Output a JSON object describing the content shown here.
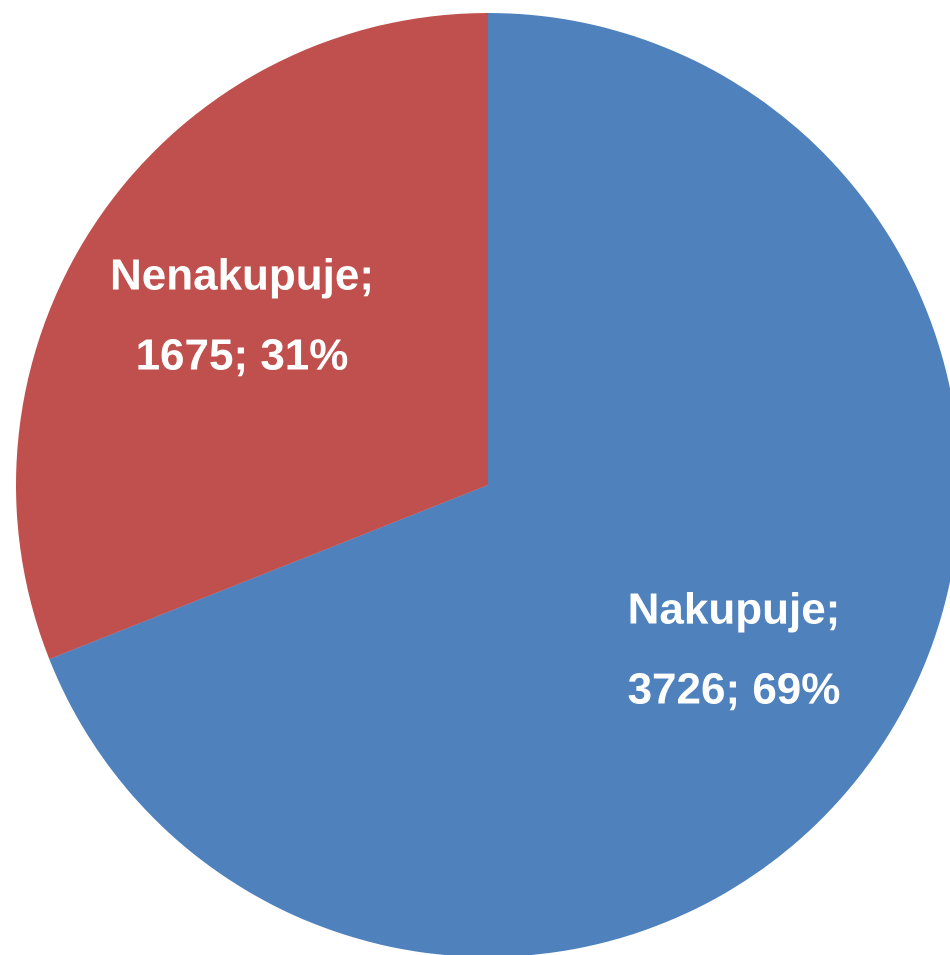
{
  "chart_data": {
    "type": "pie",
    "values": [
      3726,
      1675
    ],
    "value_labels": [
      [
        "Nakupuje;",
        "3726; 69%"
      ],
      [
        "Nenakupuje;",
        "1675; 31%"
      ]
    ],
    "colors": [
      "#4f81bd",
      "#c0504d"
    ]
  }
}
